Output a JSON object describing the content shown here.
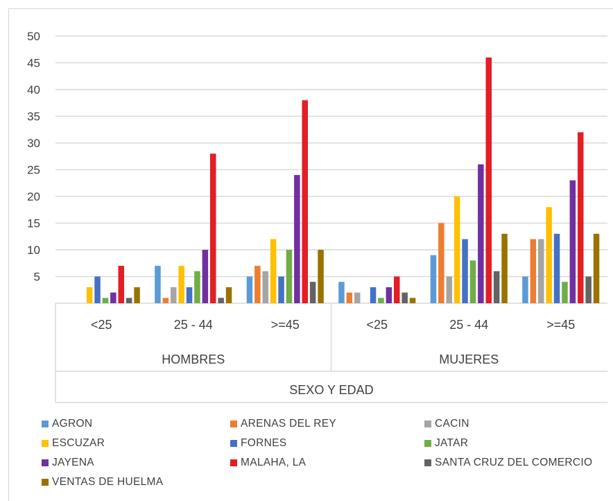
{
  "chart_data": {
    "type": "bar",
    "y_ticks": [
      "5",
      "10",
      "15",
      "20",
      "25",
      "30",
      "35",
      "40",
      "45",
      "50"
    ],
    "ylim": [
      0,
      50
    ],
    "grid": true,
    "xlabel": "SEXO Y EDAD",
    "groups": [
      {
        "label": "HOMBRES",
        "categories": [
          "<25",
          "25 - 44",
          ">=45"
        ]
      },
      {
        "label": "MUJERES",
        "categories": [
          "<25",
          "25 - 44",
          ">=45"
        ]
      }
    ],
    "series": [
      {
        "name": "AGRON",
        "color": "#5b9bd5",
        "values": [
          0,
          7,
          5,
          4,
          9,
          5
        ]
      },
      {
        "name": "ARENAS DEL REY",
        "color": "#ed7d31",
        "values": [
          0,
          1,
          7,
          2,
          15,
          12
        ]
      },
      {
        "name": "CACIN",
        "color": "#a5a5a5",
        "values": [
          0,
          3,
          6,
          2,
          5,
          12
        ]
      },
      {
        "name": "ESCUZAR",
        "color": "#ffc000",
        "values": [
          3,
          7,
          12,
          0,
          20,
          18
        ]
      },
      {
        "name": "FORNES",
        "color": "#4472c4",
        "values": [
          5,
          3,
          5,
          3,
          12,
          13
        ]
      },
      {
        "name": "JATAR",
        "color": "#70ad47",
        "values": [
          1,
          6,
          10,
          1,
          8,
          4
        ]
      },
      {
        "name": "JAYENA",
        "color": "#7030a0",
        "values": [
          2,
          10,
          24,
          3,
          26,
          23
        ]
      },
      {
        "name": "MALAHA, LA",
        "color": "#e31e24",
        "values": [
          7,
          28,
          38,
          5,
          46,
          32
        ]
      },
      {
        "name": "SANTA CRUZ DEL COMERCIO",
        "color": "#636363",
        "values": [
          1,
          1,
          4,
          2,
          6,
          5
        ]
      },
      {
        "name": "VENTAS DE HUELMA",
        "color": "#997300",
        "values": [
          3,
          3,
          10,
          1,
          13,
          13
        ]
      }
    ],
    "legend_position": "bottom"
  }
}
